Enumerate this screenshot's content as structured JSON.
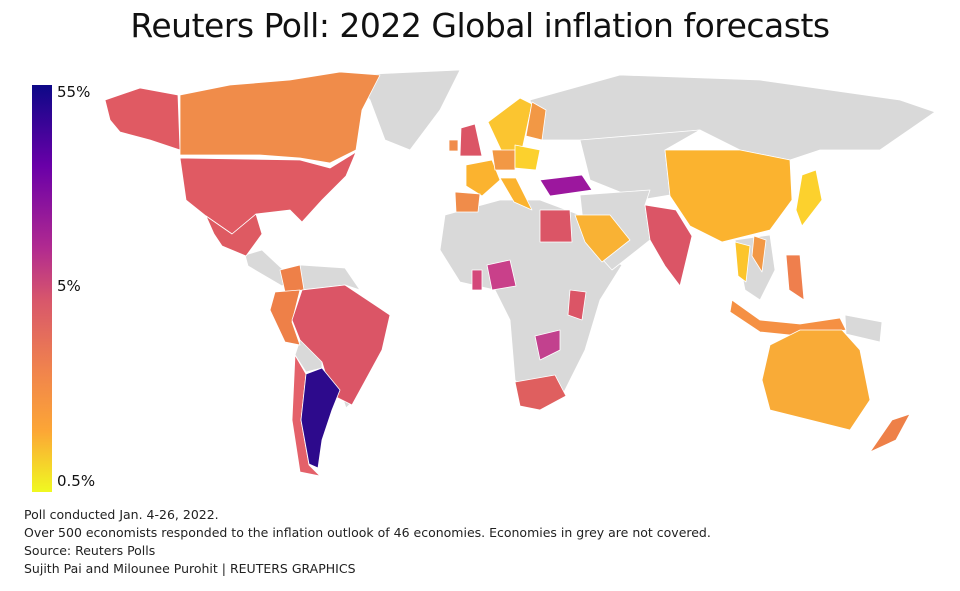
{
  "title": "Reuters Poll: 2022 Global inflation forecasts",
  "legend": {
    "ticks": [
      "55%",
      "5%",
      "0.5%"
    ],
    "scale": "log",
    "colors": [
      "#0d0887",
      "#d8576b",
      "#f0f921"
    ]
  },
  "map": {
    "no_data_color": "#d9d9d9",
    "regions": [
      {
        "id": "greenland",
        "color": "#d9d9d9"
      },
      {
        "id": "russia-asia",
        "color": "#d9d9d9"
      },
      {
        "id": "central-asia",
        "color": "#d9d9d9"
      },
      {
        "id": "africa",
        "color": "#d9d9d9"
      },
      {
        "id": "middle-east",
        "color": "#d9d9d9"
      },
      {
        "id": "central-america",
        "color": "#d9d9d9"
      },
      {
        "id": "northern-south-america",
        "color": "#d9d9d9"
      },
      {
        "id": "bolivia",
        "color": "#d9d9d9"
      },
      {
        "id": "uruguay",
        "color": "#d9d9d9"
      },
      {
        "id": "papua",
        "color": "#d9d9d9"
      },
      {
        "id": "se-asia",
        "color": "#d9d9d9"
      },
      {
        "id": "alaska",
        "color": "#e05a63"
      },
      {
        "id": "canada",
        "color": "#f08c4a"
      },
      {
        "id": "united-states",
        "color": "#e05a63"
      },
      {
        "id": "mexico",
        "color": "#de5a62"
      },
      {
        "id": "colombia",
        "color": "#ee8048"
      },
      {
        "id": "peru",
        "color": "#ee8048"
      },
      {
        "id": "brazil",
        "color": "#db5566"
      },
      {
        "id": "chile",
        "color": "#e4616a"
      },
      {
        "id": "argentina",
        "color": "#2d0a8c"
      },
      {
        "id": "norway-sweden",
        "color": "#fbc530"
      },
      {
        "id": "finland",
        "color": "#f29845"
      },
      {
        "id": "united-kingdom",
        "color": "#db5566"
      },
      {
        "id": "ireland",
        "color": "#f08c4a"
      },
      {
        "id": "france",
        "color": "#fbb32f"
      },
      {
        "id": "spain",
        "color": "#f08c4a"
      },
      {
        "id": "germany",
        "color": "#f29845"
      },
      {
        "id": "poland",
        "color": "#fcd12d"
      },
      {
        "id": "italy",
        "color": "#fbb32f"
      },
      {
        "id": "turkey",
        "color": "#9c179e"
      },
      {
        "id": "egypt",
        "color": "#db5566"
      },
      {
        "id": "nigeria",
        "color": "#c9408a"
      },
      {
        "id": "ghana",
        "color": "#d4487a"
      },
      {
        "id": "kenya",
        "color": "#db5566"
      },
      {
        "id": "zambia",
        "color": "#c2418e"
      },
      {
        "id": "south-africa",
        "color": "#df5f5f"
      },
      {
        "id": "saudi-arabia",
        "color": "#f9b234"
      },
      {
        "id": "india",
        "color": "#db5566"
      },
      {
        "id": "china",
        "color": "#fbb32f"
      },
      {
        "id": "thailand",
        "color": "#fcc52c"
      },
      {
        "id": "vietnam",
        "color": "#f29845"
      },
      {
        "id": "japan",
        "color": "#fcd12d"
      },
      {
        "id": "philippines",
        "color": "#ef7f4d"
      },
      {
        "id": "indonesia",
        "color": "#f59043"
      },
      {
        "id": "australia",
        "color": "#f9ab37"
      },
      {
        "id": "new-zealand",
        "color": "#ee8048"
      }
    ]
  },
  "notes": [
    "Poll conducted Jan. 4-26, 2022.",
    "Over 500 economists responded to the inflation outlook of 46 economies. Economies in grey are not covered.",
    "Source: Reuters Polls",
    "Sujith Pai and Milounee Purohit | REUTERS GRAPHICS"
  ]
}
